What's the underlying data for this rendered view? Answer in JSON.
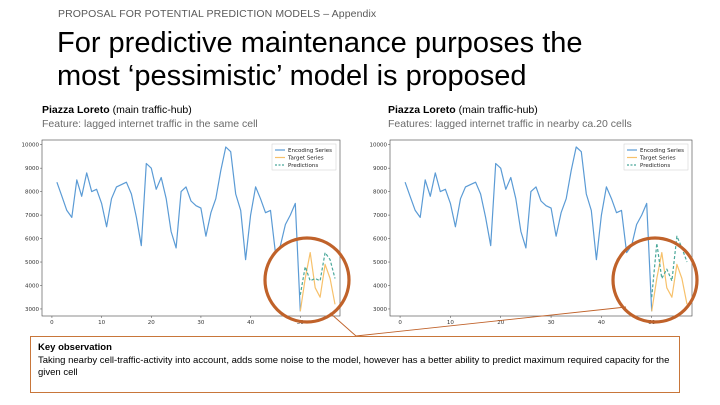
{
  "slide": {
    "kicker": "PROPOSAL FOR POTENTIAL PREDICTION MODELS – Appendix",
    "title_line1": "For predictive maintenance purposes the",
    "title_line2": "most ‘pessimistic’ model is proposed"
  },
  "panels": [
    {
      "location": "Piazza Loreto",
      "location_note": " (main traffic-hub)",
      "feature": "Feature: lagged internet traffic in the same cell"
    },
    {
      "location": "Piazza Loreto",
      "location_note": " (main traffic-hub)",
      "feature": "Features: lagged internet traffic in nearby ca.20 cells"
    }
  ],
  "observation": {
    "title": "Key observation",
    "text": "Taking nearby cell-traffic-activity into account, adds some noise to the model, however has a better ability to predict maximum required capacity for the given cell"
  },
  "colors": {
    "encoding": "#5b9bd5",
    "target": "#f7c16b",
    "prediction": "#4aa89a",
    "highlight": "#c0622a"
  },
  "chart_data": [
    {
      "type": "line",
      "title": "",
      "xlabel": "",
      "ylabel": "",
      "xlim": [
        -2,
        58
      ],
      "ylim": [
        2700,
        10200
      ],
      "x_ticks": [
        0,
        10,
        20,
        30,
        40,
        50
      ],
      "y_ticks": [
        3000,
        4000,
        5000,
        6000,
        7000,
        8000,
        9000,
        10000
      ],
      "legend": [
        "Encoding Series",
        "Target Series",
        "Predictions"
      ],
      "series": [
        {
          "name": "Encoding Series",
          "x": [
            1,
            2,
            3,
            4,
            5,
            6,
            7,
            8,
            9,
            10,
            11,
            12,
            13,
            14,
            15,
            16,
            17,
            18,
            19,
            20,
            21,
            22,
            23,
            24,
            25,
            26,
            27,
            28,
            29,
            30,
            31,
            32,
            33,
            34,
            35,
            36,
            37,
            38,
            39,
            40,
            41,
            42,
            43,
            44,
            45,
            46,
            47,
            48,
            49,
            50
          ],
          "values": [
            8400,
            7800,
            7200,
            6900,
            8500,
            7800,
            8800,
            8000,
            8100,
            7500,
            6500,
            7700,
            8200,
            8300,
            8400,
            7900,
            6900,
            5700,
            9200,
            9000,
            8100,
            8600,
            7700,
            6300,
            5600,
            8000,
            8200,
            7600,
            7400,
            7300,
            6100,
            7100,
            7700,
            8900,
            9900,
            9700,
            7900,
            7200,
            5100,
            7000,
            8200,
            7700,
            7100,
            7200,
            5400,
            5700,
            6600,
            7000,
            7500,
            2900
          ]
        },
        {
          "name": "Target Series",
          "x": [
            50,
            51,
            52,
            53,
            54,
            55,
            56,
            57
          ],
          "values": [
            2900,
            4300,
            5400,
            3900,
            3500,
            4900,
            4300,
            3200
          ]
        },
        {
          "name": "Predictions",
          "x": [
            50,
            51,
            52,
            53,
            54,
            55,
            56,
            57
          ],
          "values": [
            3600,
            4800,
            4200,
            4300,
            4200,
            5400,
            5100,
            4300
          ]
        }
      ]
    },
    {
      "type": "line",
      "title": "",
      "xlabel": "",
      "ylabel": "",
      "xlim": [
        -2,
        58
      ],
      "ylim": [
        2700,
        10200
      ],
      "x_ticks": [
        0,
        10,
        20,
        30,
        40,
        50
      ],
      "y_ticks": [
        3000,
        4000,
        5000,
        6000,
        7000,
        8000,
        9000,
        10000
      ],
      "legend": [
        "Encoding Series",
        "Target Series",
        "Predictions"
      ],
      "series": [
        {
          "name": "Encoding Series",
          "x": [
            1,
            2,
            3,
            4,
            5,
            6,
            7,
            8,
            9,
            10,
            11,
            12,
            13,
            14,
            15,
            16,
            17,
            18,
            19,
            20,
            21,
            22,
            23,
            24,
            25,
            26,
            27,
            28,
            29,
            30,
            31,
            32,
            33,
            34,
            35,
            36,
            37,
            38,
            39,
            40,
            41,
            42,
            43,
            44,
            45,
            46,
            47,
            48,
            49,
            50
          ],
          "values": [
            8400,
            7800,
            7200,
            6900,
            8500,
            7800,
            8800,
            8000,
            8100,
            7500,
            6500,
            7700,
            8200,
            8300,
            8400,
            7900,
            6900,
            5700,
            9200,
            9000,
            8100,
            8600,
            7700,
            6300,
            5600,
            8000,
            8200,
            7600,
            7400,
            7300,
            6100,
            7100,
            7700,
            8900,
            9900,
            9700,
            7900,
            7200,
            5100,
            7000,
            8200,
            7700,
            7100,
            7200,
            5400,
            5700,
            6600,
            7000,
            7500,
            2900
          ]
        },
        {
          "name": "Target Series",
          "x": [
            50,
            51,
            52,
            53,
            54,
            55,
            56,
            57
          ],
          "values": [
            2900,
            4300,
            5400,
            3900,
            3500,
            4900,
            4300,
            3200
          ]
        },
        {
          "name": "Predictions",
          "x": [
            50,
            51,
            52,
            53,
            54,
            55,
            56,
            57
          ],
          "values": [
            3500,
            5800,
            4300,
            4700,
            4200,
            6100,
            5600,
            5000
          ]
        }
      ]
    }
  ]
}
